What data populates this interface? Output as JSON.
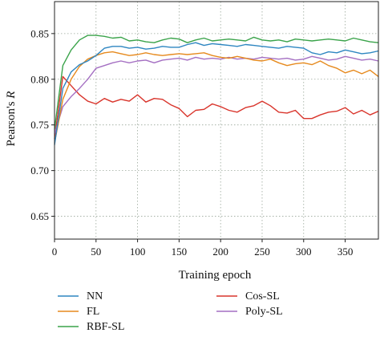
{
  "chart_data": {
    "type": "line",
    "xlabel": "Training epoch",
    "ylabel": "Pearson's R",
    "xlim": [
      0,
      390
    ],
    "ylim": [
      0.625,
      0.885
    ],
    "xticks": [
      0,
      50,
      100,
      150,
      200,
      250,
      300,
      350
    ],
    "yticks": [
      0.65,
      0.7,
      0.75,
      0.8,
      0.85
    ],
    "ytick_labels": [
      "0.65",
      "0.70",
      "0.75",
      "0.80",
      "0.85"
    ],
    "grid": "dotted",
    "legend_position": "bottom",
    "series": [
      {
        "name": "NN",
        "color": "#2e86c1",
        "x": [
          0,
          10,
          20,
          30,
          40,
          50,
          60,
          70,
          80,
          90,
          100,
          110,
          120,
          130,
          140,
          150,
          160,
          170,
          180,
          190,
          200,
          210,
          220,
          230,
          240,
          250,
          260,
          270,
          280,
          290,
          300,
          310,
          320,
          330,
          340,
          350,
          360,
          370,
          380,
          390
        ],
        "y": [
          0.728,
          0.79,
          0.808,
          0.816,
          0.82,
          0.826,
          0.834,
          0.836,
          0.836,
          0.834,
          0.835,
          0.833,
          0.834,
          0.836,
          0.835,
          0.835,
          0.838,
          0.84,
          0.837,
          0.839,
          0.838,
          0.837,
          0.836,
          0.838,
          0.837,
          0.836,
          0.835,
          0.834,
          0.836,
          0.835,
          0.834,
          0.829,
          0.827,
          0.83,
          0.829,
          0.832,
          0.83,
          0.828,
          0.829,
          0.831
        ]
      },
      {
        "name": "FL",
        "color": "#e68a1e",
        "x": [
          0,
          10,
          20,
          30,
          40,
          50,
          60,
          70,
          80,
          90,
          100,
          110,
          120,
          130,
          140,
          150,
          160,
          170,
          180,
          190,
          200,
          210,
          220,
          230,
          240,
          250,
          260,
          270,
          280,
          290,
          300,
          310,
          320,
          330,
          340,
          350,
          360,
          370,
          380,
          390
        ],
        "y": [
          0.73,
          0.778,
          0.8,
          0.814,
          0.822,
          0.826,
          0.829,
          0.83,
          0.828,
          0.826,
          0.827,
          0.829,
          0.827,
          0.826,
          0.827,
          0.828,
          0.827,
          0.828,
          0.829,
          0.826,
          0.824,
          0.823,
          0.825,
          0.823,
          0.821,
          0.82,
          0.822,
          0.818,
          0.815,
          0.817,
          0.818,
          0.816,
          0.82,
          0.815,
          0.812,
          0.807,
          0.81,
          0.806,
          0.81,
          0.803
        ]
      },
      {
        "name": "RBF-SL",
        "color": "#3aa34a",
        "x": [
          0,
          10,
          20,
          30,
          40,
          50,
          60,
          70,
          80,
          90,
          100,
          110,
          120,
          130,
          140,
          150,
          160,
          170,
          180,
          190,
          200,
          210,
          220,
          230,
          240,
          250,
          260,
          270,
          280,
          290,
          300,
          310,
          320,
          330,
          340,
          350,
          360,
          370,
          380,
          390
        ],
        "y": [
          0.745,
          0.815,
          0.832,
          0.843,
          0.848,
          0.848,
          0.847,
          0.845,
          0.846,
          0.842,
          0.843,
          0.841,
          0.84,
          0.843,
          0.845,
          0.844,
          0.84,
          0.843,
          0.845,
          0.842,
          0.843,
          0.844,
          0.843,
          0.842,
          0.846,
          0.843,
          0.842,
          0.843,
          0.841,
          0.844,
          0.843,
          0.842,
          0.843,
          0.844,
          0.843,
          0.842,
          0.845,
          0.843,
          0.841,
          0.84
        ]
      },
      {
        "name": "Cos-SL",
        "color": "#d9352c",
        "x": [
          0,
          10,
          20,
          30,
          40,
          50,
          60,
          70,
          80,
          90,
          100,
          110,
          120,
          130,
          140,
          150,
          160,
          170,
          180,
          190,
          200,
          210,
          220,
          230,
          240,
          250,
          260,
          270,
          280,
          290,
          300,
          310,
          320,
          330,
          340,
          350,
          360,
          370,
          380,
          390
        ],
        "y": [
          0.735,
          0.803,
          0.793,
          0.783,
          0.776,
          0.773,
          0.779,
          0.775,
          0.778,
          0.776,
          0.783,
          0.775,
          0.779,
          0.778,
          0.772,
          0.768,
          0.759,
          0.766,
          0.767,
          0.773,
          0.77,
          0.766,
          0.764,
          0.769,
          0.771,
          0.776,
          0.771,
          0.764,
          0.763,
          0.766,
          0.757,
          0.757,
          0.761,
          0.764,
          0.765,
          0.769,
          0.762,
          0.766,
          0.761,
          0.765
        ]
      },
      {
        "name": "Poly-SL",
        "color": "#a46fc2",
        "x": [
          0,
          10,
          20,
          30,
          40,
          50,
          60,
          70,
          80,
          90,
          100,
          110,
          120,
          130,
          140,
          150,
          160,
          170,
          180,
          190,
          200,
          210,
          220,
          230,
          240,
          250,
          260,
          270,
          280,
          290,
          300,
          310,
          320,
          330,
          340,
          350,
          360,
          370,
          380,
          390
        ],
        "y": [
          0.74,
          0.77,
          0.781,
          0.79,
          0.8,
          0.812,
          0.815,
          0.818,
          0.82,
          0.818,
          0.82,
          0.821,
          0.818,
          0.821,
          0.822,
          0.823,
          0.821,
          0.824,
          0.822,
          0.823,
          0.822,
          0.824,
          0.822,
          0.823,
          0.822,
          0.824,
          0.823,
          0.822,
          0.823,
          0.821,
          0.822,
          0.825,
          0.823,
          0.821,
          0.822,
          0.825,
          0.823,
          0.821,
          0.822,
          0.82
        ]
      }
    ]
  }
}
